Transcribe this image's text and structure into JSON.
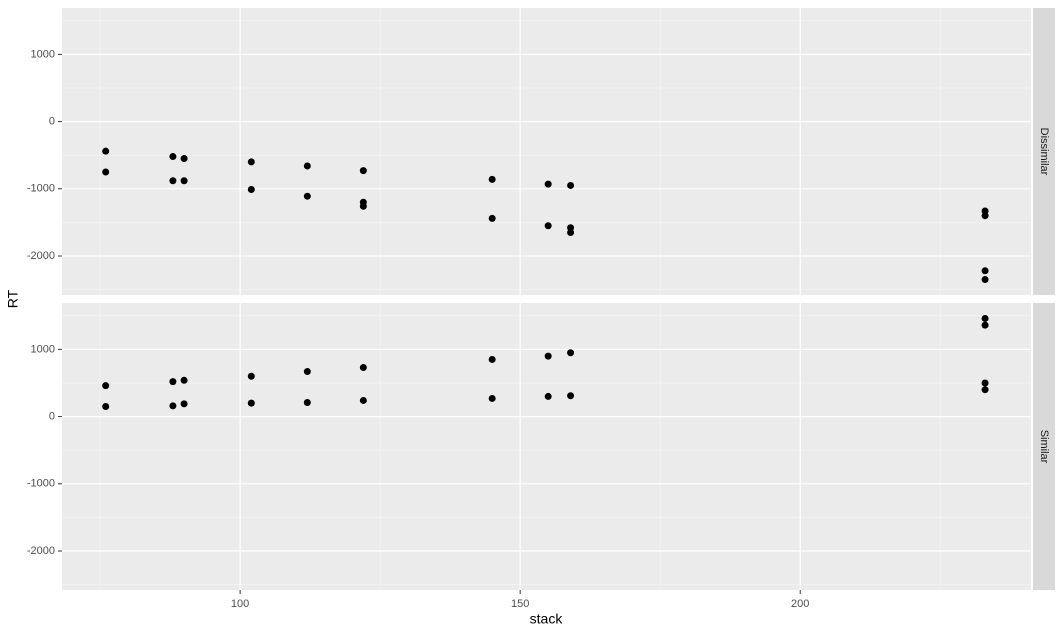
{
  "chart_data": {
    "type": "scatter",
    "x_label": "stack",
    "y_label": "RT",
    "color": "#000000",
    "xlim": [
      68.2,
      241.2
    ],
    "xticks": [
      100,
      150,
      200
    ],
    "ylim": [
      -2580,
      1690
    ],
    "yticks": [
      -2000,
      -1000,
      0,
      1000
    ],
    "grid": true,
    "minor_grid": true,
    "facets": [
      {
        "label": "Dissimilar",
        "x": [
          76,
          76,
          88,
          88,
          90,
          90,
          102,
          102,
          112,
          112,
          122,
          122,
          122,
          145,
          145,
          155,
          155,
          159,
          159,
          159,
          233,
          233,
          233,
          233
        ],
        "y": [
          -440,
          -750,
          -520,
          -880,
          -550,
          -880,
          -600,
          -1010,
          -660,
          -1110,
          -730,
          -1200,
          -1260,
          -860,
          -1440,
          -930,
          -1550,
          -950,
          -1580,
          -1650,
          -1330,
          -1400,
          -2220,
          -2350
        ]
      },
      {
        "label": "Similar",
        "x": [
          76,
          76,
          88,
          88,
          90,
          90,
          102,
          102,
          112,
          112,
          122,
          122,
          145,
          145,
          155,
          155,
          159,
          159,
          233,
          233,
          233,
          233
        ],
        "y": [
          460,
          150,
          520,
          160,
          540,
          190,
          600,
          200,
          670,
          210,
          730,
          240,
          850,
          270,
          900,
          300,
          950,
          310,
          1460,
          1360,
          500,
          400
        ]
      }
    ]
  }
}
